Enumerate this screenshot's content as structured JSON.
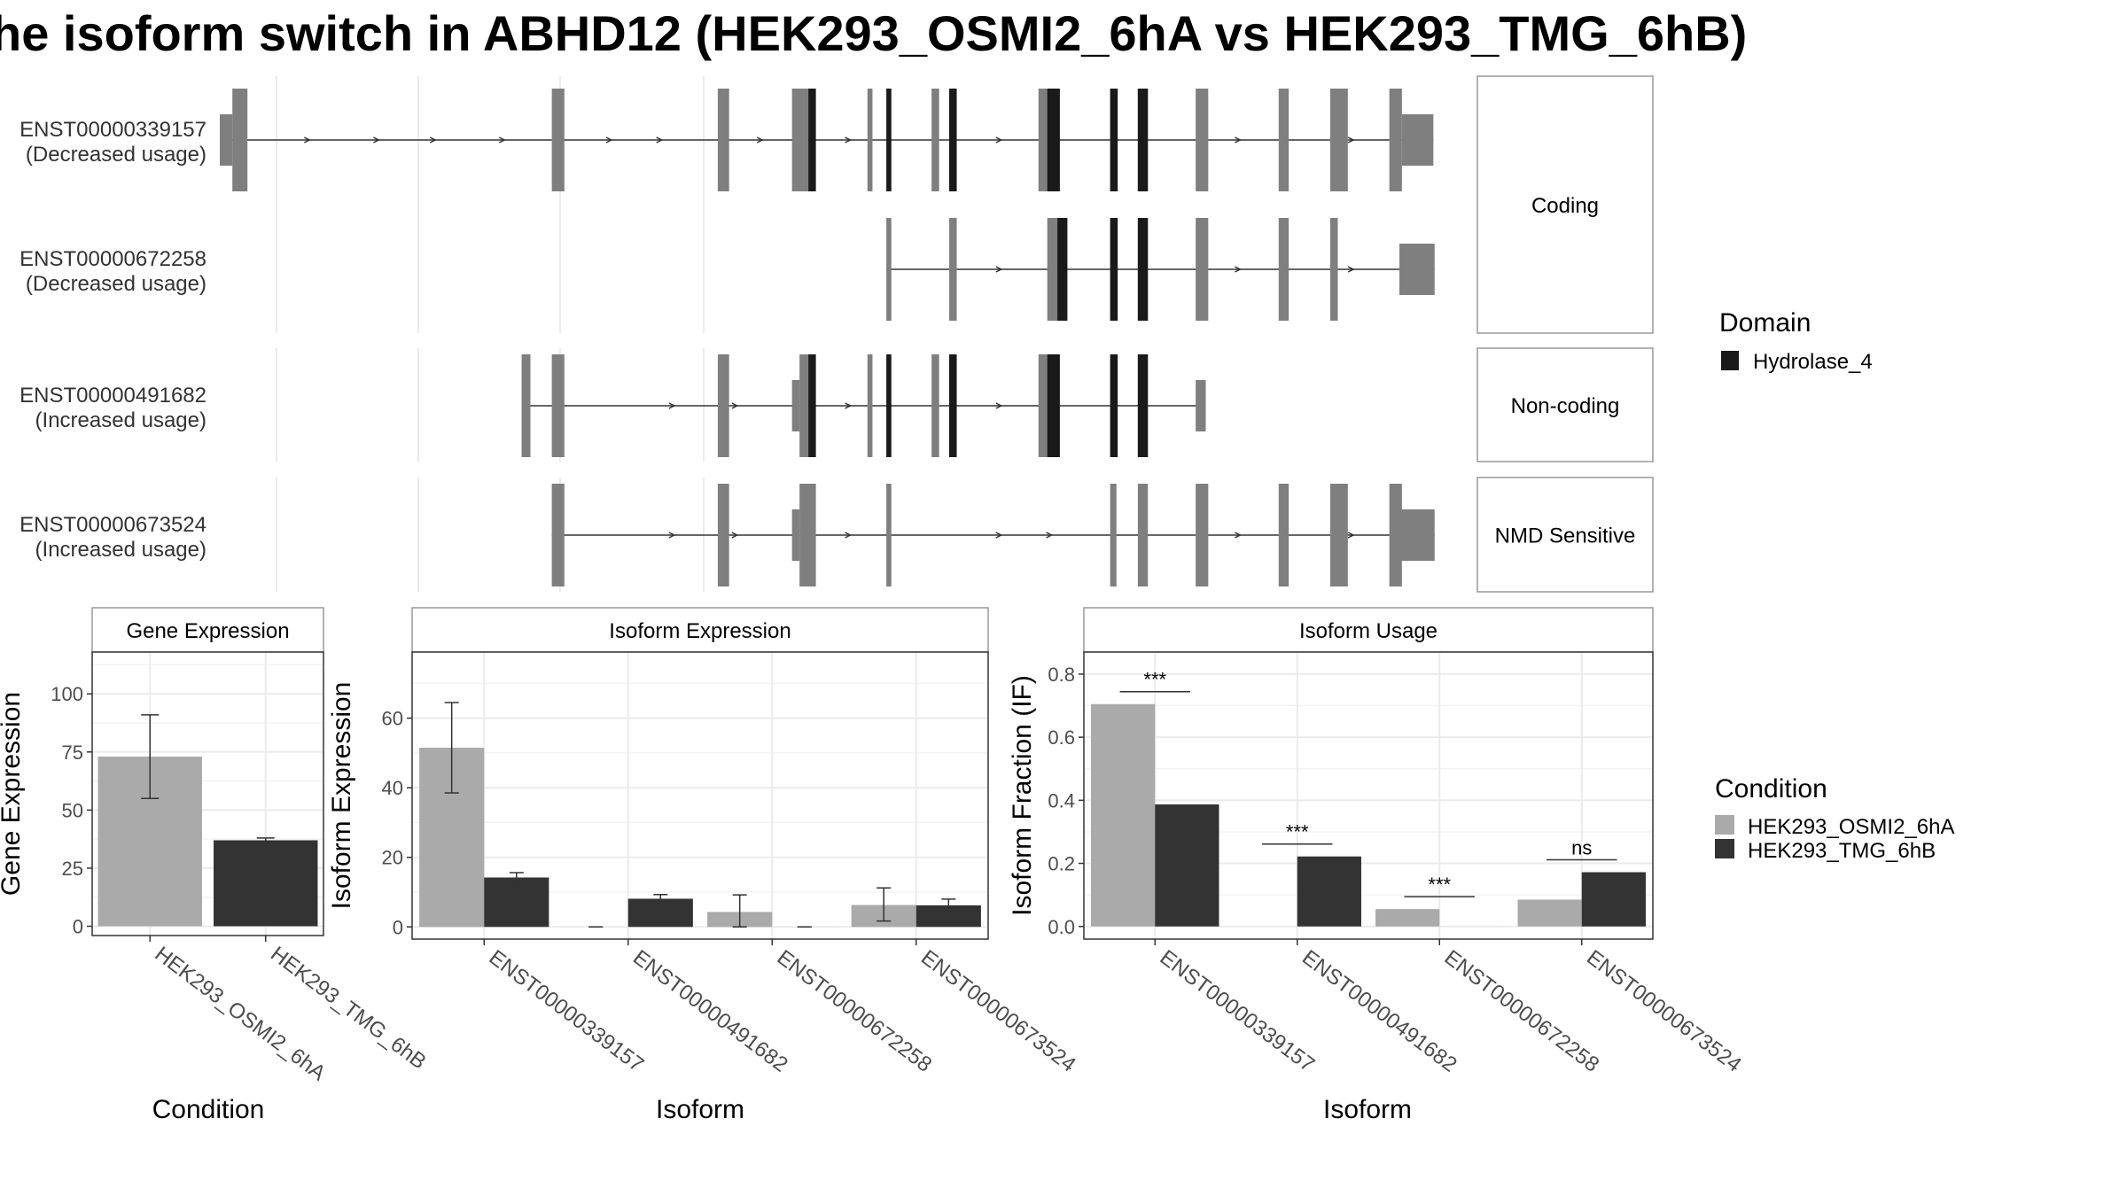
{
  "title": "he isoform switch in ABHD12 (HEK293_OSMI2_6hA vs HEK293_TMG_6hB)",
  "colors": {
    "exon": "#7f7f7f",
    "domain": "#1a1a1a",
    "cond_a": "#aaaaaa",
    "cond_b": "#333333",
    "grid": "#ebebeb",
    "strip": "#ffffff"
  },
  "transcripts": [
    {
      "id": "ENST00000339157",
      "usage": "(Decreased usage)",
      "panel": 0,
      "utr": [
        [
          0.0,
          0.01
        ],
        [
          0.94,
          0.965
        ]
      ],
      "exons": [
        [
          0.01,
          0.022
        ],
        [
          0.264,
          0.274
        ],
        [
          0.396,
          0.405
        ],
        [
          0.455,
          0.468
        ],
        [
          0.515,
          0.519
        ],
        [
          0.566,
          0.572
        ],
        [
          0.651,
          0.666
        ],
        [
          0.708,
          0.713
        ],
        [
          0.73,
          0.738
        ],
        [
          0.776,
          0.786
        ],
        [
          0.842,
          0.85
        ],
        [
          0.883,
          0.897
        ],
        [
          0.93,
          0.94
        ]
      ],
      "domains": [
        [
          0.468,
          0.474
        ],
        [
          0.53,
          0.534
        ],
        [
          0.58,
          0.586
        ],
        [
          0.658,
          0.668
        ],
        [
          0.708,
          0.714
        ],
        [
          0.73,
          0.738
        ]
      ],
      "arrows": [
        0.07,
        0.125,
        0.17,
        0.225,
        0.31,
        0.35,
        0.43,
        0.5,
        0.62,
        0.81,
        0.9
      ]
    },
    {
      "id": "ENST00000672258",
      "usage": "(Decreased usage)",
      "panel": 0,
      "utr": [
        [
          0.938,
          0.966
        ]
      ],
      "exons": [
        [
          0.53,
          0.534
        ],
        [
          0.58,
          0.586
        ],
        [
          0.658,
          0.666
        ],
        [
          0.708,
          0.713
        ],
        [
          0.73,
          0.738
        ],
        [
          0.776,
          0.786
        ],
        [
          0.842,
          0.85
        ],
        [
          0.883,
          0.889
        ]
      ],
      "domains": [
        [
          0.666,
          0.674
        ],
        [
          0.708,
          0.714
        ],
        [
          0.73,
          0.738
        ]
      ],
      "arrows": [
        0.62,
        0.81,
        0.9
      ]
    },
    {
      "id": "ENST00000491682",
      "usage": "(Increased usage)",
      "panel": 1,
      "utr": [
        [
          0.455,
          0.461
        ],
        [
          0.776,
          0.784
        ]
      ],
      "exons": [
        [
          0.24,
          0.247
        ],
        [
          0.264,
          0.274
        ],
        [
          0.396,
          0.405
        ],
        [
          0.461,
          0.468
        ],
        [
          0.515,
          0.519
        ],
        [
          0.566,
          0.572
        ],
        [
          0.651,
          0.666
        ],
        [
          0.708,
          0.713
        ],
        [
          0.73,
          0.738
        ]
      ],
      "domains": [
        [
          0.468,
          0.474
        ],
        [
          0.53,
          0.534
        ],
        [
          0.58,
          0.586
        ],
        [
          0.658,
          0.668
        ],
        [
          0.708,
          0.714
        ],
        [
          0.73,
          0.738
        ]
      ],
      "arrows": [
        0.36,
        0.41,
        0.5,
        0.62
      ]
    },
    {
      "id": "ENST00000673524",
      "usage": "(Increased usage)",
      "panel": 2,
      "utr": [
        [
          0.455,
          0.461
        ],
        [
          0.938,
          0.966
        ]
      ],
      "exons": [
        [
          0.264,
          0.274
        ],
        [
          0.396,
          0.405
        ],
        [
          0.461,
          0.474
        ],
        [
          0.53,
          0.534
        ],
        [
          0.708,
          0.713
        ],
        [
          0.73,
          0.738
        ],
        [
          0.776,
          0.786
        ],
        [
          0.842,
          0.85
        ],
        [
          0.883,
          0.897
        ],
        [
          0.93,
          0.94
        ]
      ],
      "domains": [],
      "arrows": [
        0.36,
        0.41,
        0.5,
        0.62,
        0.66,
        0.81,
        0.9
      ]
    }
  ],
  "facets": [
    "Coding",
    "Non-coding",
    "NMD Sensitive"
  ],
  "domain_legend": {
    "title": "Domain",
    "items": [
      "Hydrolase_4"
    ]
  },
  "condition_legend": {
    "title": "Condition",
    "items": [
      "HEK293_OSMI2_6hA",
      "HEK293_TMG_6hB"
    ]
  },
  "chart_data": [
    {
      "type": "bar",
      "title": "Gene Expression",
      "xlabel": "Condition",
      "ylabel": "Gene Expression",
      "categories": [
        "HEK293_OSMI2_6hA",
        "HEK293_TMG_6hB"
      ],
      "values": [
        73,
        37
      ],
      "err_low": [
        55,
        36
      ],
      "err_high": [
        91,
        38
      ],
      "ylim": [
        -4,
        118
      ],
      "yticks": [
        0,
        25,
        50,
        75,
        100
      ]
    },
    {
      "type": "bar",
      "title": "Isoform Expression",
      "xlabel": "Isoform",
      "ylabel": "Isoform Expression",
      "categories": [
        "ENST00000339157",
        "ENST00000491682",
        "ENST00000672258",
        "ENST00000673524"
      ],
      "series": [
        {
          "name": "HEK293_OSMI2_6hA",
          "values": [
            51.5,
            0,
            4.3,
            6.3
          ],
          "err_low": [
            38.5,
            0,
            0,
            1.7
          ],
          "err_high": [
            64.5,
            0,
            9.2,
            11.2
          ]
        },
        {
          "name": "HEK293_TMG_6hB",
          "values": [
            14.2,
            8.1,
            0,
            6.2
          ],
          "err_low": [
            12.8,
            7.1,
            0,
            4.6
          ],
          "err_high": [
            15.6,
            9.3,
            0,
            8.0
          ]
        }
      ],
      "ylim": [
        -3.5,
        79
      ],
      "yticks": [
        0,
        20,
        40,
        60
      ]
    },
    {
      "type": "bar",
      "title": "Isoform Usage",
      "xlabel": "Isoform",
      "ylabel": "Isoform Fraction (IF)",
      "categories": [
        "ENST00000339157",
        "ENST00000491682",
        "ENST00000672258",
        "ENST00000673524"
      ],
      "series": [
        {
          "name": "HEK293_OSMI2_6hA",
          "values": [
            0.705,
            0.0,
            0.055,
            0.085
          ]
        },
        {
          "name": "HEK293_TMG_6hB",
          "values": [
            0.387,
            0.222,
            0.0,
            0.172
          ]
        }
      ],
      "significance": [
        "***",
        "***",
        "***",
        "ns"
      ],
      "ylim": [
        -0.04,
        0.87
      ],
      "yticks": [
        0.0,
        0.2,
        0.4,
        0.6,
        0.8
      ]
    }
  ]
}
